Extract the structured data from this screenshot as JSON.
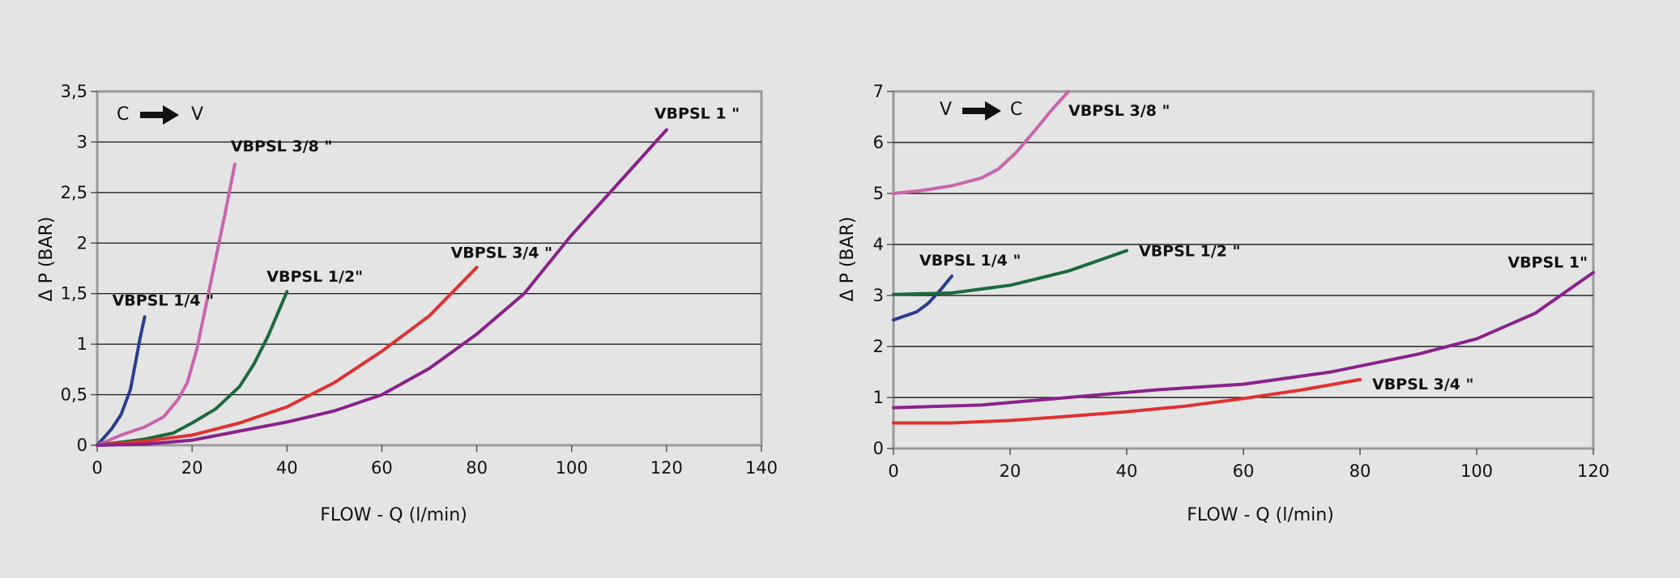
{
  "chart_data": [
    {
      "type": "line",
      "title": "",
      "xlabel": "FLOW - Q (l/min)",
      "ylabel": "Δ P (BAR)",
      "xlim": [
        0,
        140
      ],
      "ylim": [
        0,
        3.5
      ],
      "x_ticks": [
        "0",
        "20",
        "40",
        "60",
        "80",
        "100",
        "120",
        "140"
      ],
      "y_ticks": [
        "0",
        "0,5",
        "1",
        "1,5",
        "2",
        "2,5",
        "3",
        "3,5"
      ],
      "grid": "horizontal",
      "direction": {
        "from": "C",
        "to": "V"
      },
      "series": [
        {
          "name": "VBPSL 1/4 \"",
          "color": "#2a3f8f",
          "points": [
            [
              0,
              0
            ],
            [
              3,
              0.16
            ],
            [
              5,
              0.3
            ],
            [
              7,
              0.55
            ],
            [
              8,
              0.8
            ],
            [
              9,
              1.05
            ],
            [
              10,
              1.27
            ]
          ]
        },
        {
          "name": "VBPSL 3/8 \"",
          "color": "#c965ac",
          "points": [
            [
              0,
              0
            ],
            [
              5,
              0.1
            ],
            [
              10,
              0.18
            ],
            [
              14,
              0.28
            ],
            [
              17,
              0.45
            ],
            [
              19,
              0.62
            ],
            [
              21,
              0.95
            ],
            [
              23,
              1.4
            ],
            [
              25,
              1.85
            ],
            [
              27,
              2.3
            ],
            [
              29,
              2.78
            ]
          ]
        },
        {
          "name": "VBPSL 1/2\"",
          "color": "#1c6a3c",
          "points": [
            [
              0,
              0
            ],
            [
              10,
              0.06
            ],
            [
              16,
              0.12
            ],
            [
              20,
              0.22
            ],
            [
              25,
              0.36
            ],
            [
              30,
              0.58
            ],
            [
              33,
              0.8
            ],
            [
              36,
              1.08
            ],
            [
              38,
              1.3
            ],
            [
              40,
              1.52
            ]
          ]
        },
        {
          "name": "VBPSL 3/4 \"",
          "color": "#e03131",
          "points": [
            [
              0,
              0
            ],
            [
              10,
              0.04
            ],
            [
              20,
              0.1
            ],
            [
              30,
              0.22
            ],
            [
              40,
              0.38
            ],
            [
              50,
              0.62
            ],
            [
              60,
              0.93
            ],
            [
              70,
              1.28
            ],
            [
              80,
              1.76
            ]
          ]
        },
        {
          "name": "VBPSL 1 \"",
          "color": "#8a228a",
          "points": [
            [
              0,
              0
            ],
            [
              10,
              0.01
            ],
            [
              20,
              0.05
            ],
            [
              30,
              0.14
            ],
            [
              40,
              0.23
            ],
            [
              50,
              0.34
            ],
            [
              60,
              0.5
            ],
            [
              70,
              0.76
            ],
            [
              80,
              1.1
            ],
            [
              90,
              1.5
            ],
            [
              100,
              2.08
            ],
            [
              110,
              2.6
            ],
            [
              120,
              3.12
            ]
          ]
        }
      ]
    },
    {
      "type": "line",
      "title": "",
      "xlabel": "FLOW - Q (l/min)",
      "ylabel": "Δ P (BAR)",
      "xlim": [
        0,
        120
      ],
      "ylim": [
        0,
        7
      ],
      "x_ticks": [
        "0",
        "20",
        "40",
        "60",
        "80",
        "100",
        "120"
      ],
      "y_ticks": [
        "0",
        "1",
        "2",
        "3",
        "4",
        "5",
        "6",
        "7"
      ],
      "grid": "horizontal",
      "direction": {
        "from": "V",
        "to": "C"
      },
      "series": [
        {
          "name": "VBPSL 3/8 \"",
          "color": "#c965ac",
          "points": [
            [
              0,
              5.0
            ],
            [
              5,
              5.06
            ],
            [
              10,
              5.15
            ],
            [
              15,
              5.3
            ],
            [
              18,
              5.48
            ],
            [
              21,
              5.8
            ],
            [
              24,
              6.2
            ],
            [
              27,
              6.62
            ],
            [
              30,
              7.0
            ]
          ]
        },
        {
          "name": "VBPSL 1/4 \"",
          "color": "#2a3f8f",
          "points": [
            [
              0,
              2.52
            ],
            [
              2,
              2.6
            ],
            [
              4,
              2.68
            ],
            [
              6,
              2.85
            ],
            [
              8,
              3.1
            ],
            [
              10,
              3.38
            ]
          ]
        },
        {
          "name": "VBPSL 1/2 \"",
          "color": "#1c6a3c",
          "points": [
            [
              0,
              3.02
            ],
            [
              10,
              3.05
            ],
            [
              20,
              3.2
            ],
            [
              30,
              3.48
            ],
            [
              40,
              3.88
            ]
          ]
        },
        {
          "name": "VBPSL 1\"",
          "color": "#8a228a",
          "points": [
            [
              0,
              0.8
            ],
            [
              15,
              0.85
            ],
            [
              30,
              1.0
            ],
            [
              45,
              1.15
            ],
            [
              60,
              1.26
            ],
            [
              75,
              1.5
            ],
            [
              90,
              1.85
            ],
            [
              100,
              2.15
            ],
            [
              110,
              2.65
            ],
            [
              120,
              3.45
            ]
          ]
        },
        {
          "name": "VBPSL 3/4 \"",
          "color": "#e03131",
          "points": [
            [
              0,
              0.5
            ],
            [
              10,
              0.5
            ],
            [
              20,
              0.55
            ],
            [
              30,
              0.63
            ],
            [
              40,
              0.72
            ],
            [
              50,
              0.83
            ],
            [
              60,
              0.98
            ],
            [
              70,
              1.15
            ],
            [
              80,
              1.35
            ]
          ]
        }
      ]
    }
  ]
}
